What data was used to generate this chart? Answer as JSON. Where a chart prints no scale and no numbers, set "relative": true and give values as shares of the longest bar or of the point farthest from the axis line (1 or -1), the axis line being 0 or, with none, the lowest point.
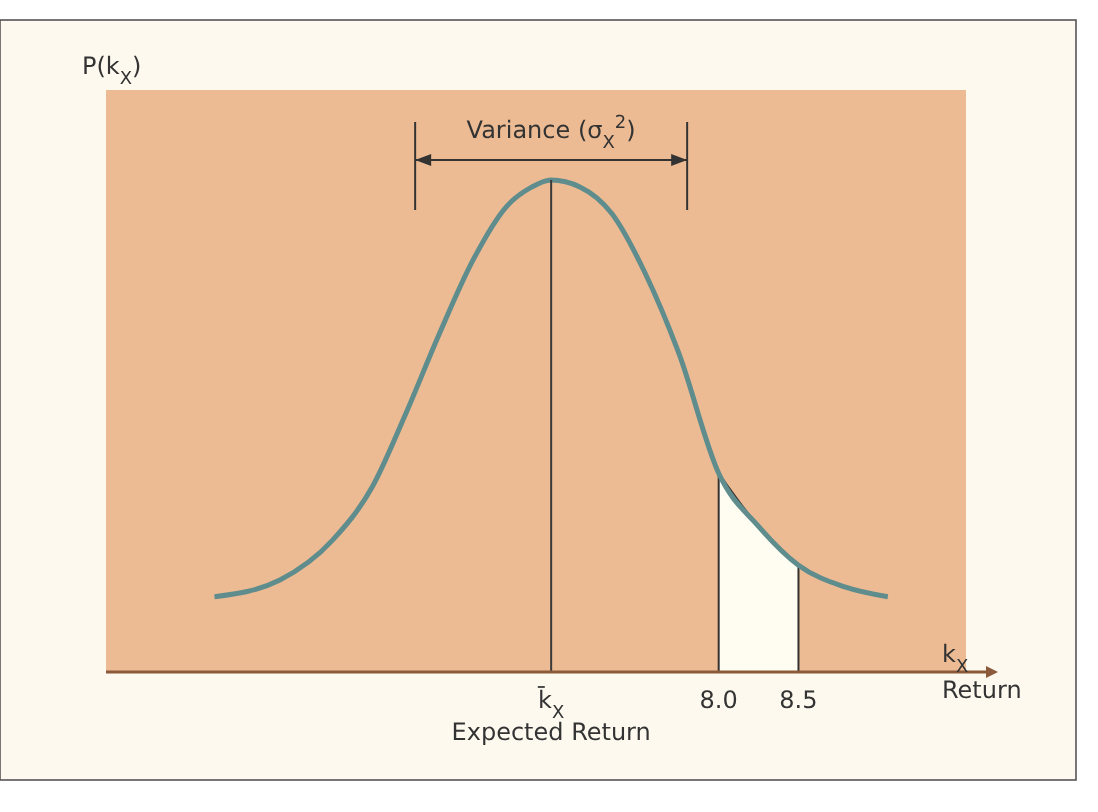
{
  "chart_data": {
    "type": "line",
    "relative": true,
    "ylabel": "P(k$_{X}$)",
    "xlabel": "k$_{X}$\nReturn",
    "xlim": [
      4.16,
      9.55
    ],
    "xticks": [
      {
        "value": 6.95,
        "label": "k̄$_{X}$\nExpected Return"
      },
      {
        "value": 8.0,
        "label": "8.0"
      },
      {
        "value": 8.5,
        "label": "8.5"
      }
    ],
    "annotations": [
      "Variance (σ$_{X}$$^{2}$)"
    ],
    "ref_lines": [
      {
        "axis": "x",
        "value": 6.95,
        "color": "#3a3a3a"
      }
    ],
    "series": [
      {
        "type": "area",
        "color": "#fffcf2",
        "x": [
          8.0,
          8.25,
          8.5
        ],
        "values": [
          0.404,
          0.296,
          0.217
        ]
      },
      {
        "color": "#5f8d8d",
        "x": [
          4.84,
          5.25,
          5.58,
          5.83,
          6.04,
          6.25,
          6.46,
          6.67,
          6.83,
          6.95,
          7.13,
          7.33,
          7.54,
          7.75,
          8.0,
          8.25,
          8.5,
          8.79,
          9.06
        ],
        "values": [
          0.153,
          0.187,
          0.268,
          0.377,
          0.526,
          0.688,
          0.837,
          0.946,
          0.986,
          1.0,
          0.986,
          0.932,
          0.81,
          0.648,
          0.404,
          0.296,
          0.217,
          0.173,
          0.153
        ]
      }
    ]
  }
}
